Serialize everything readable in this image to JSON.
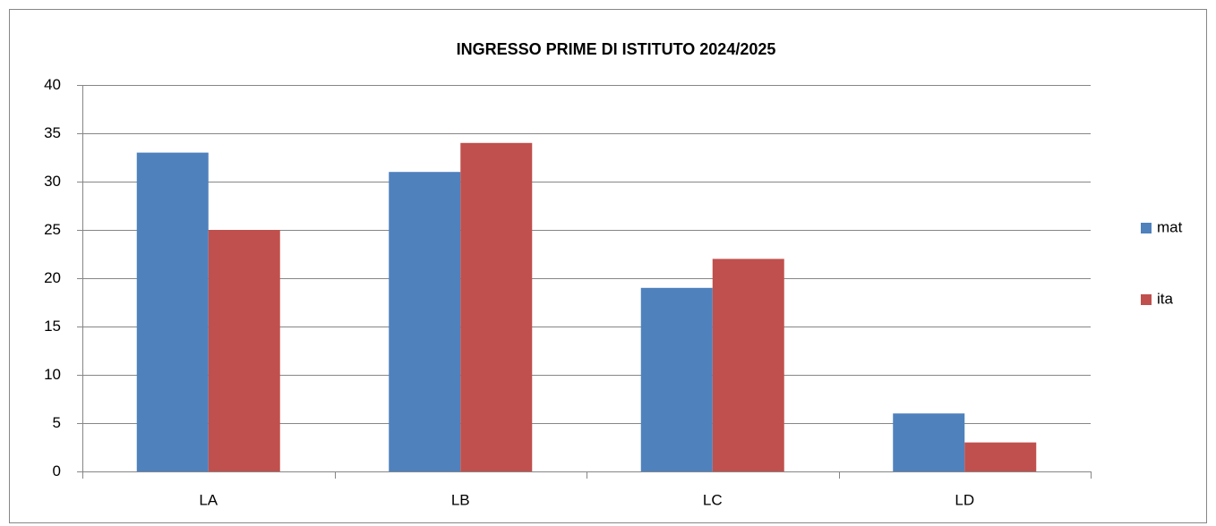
{
  "chart_data": {
    "type": "bar",
    "title": "INGRESSO PRIME DI ISTITUTO 2024/2025",
    "categories": [
      "LA",
      "LB",
      "LC",
      "LD"
    ],
    "series": [
      {
        "name": "mat",
        "color": "#4f81bd",
        "values": [
          33,
          31,
          19,
          6
        ]
      },
      {
        "name": "ita",
        "color": "#c0504d",
        "values": [
          25,
          34,
          22,
          3
        ]
      }
    ],
    "ylim": [
      0,
      40
    ],
    "yticks": [
      0,
      5,
      10,
      15,
      20,
      25,
      30,
      35,
      40
    ],
    "grid": true,
    "legend": "right"
  }
}
